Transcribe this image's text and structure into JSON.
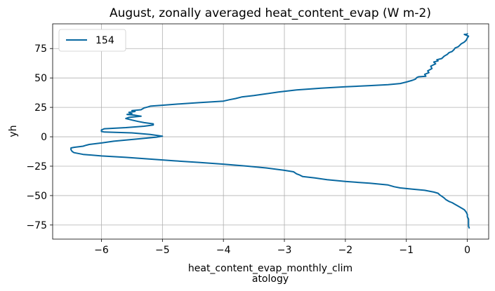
{
  "chart_data": {
    "type": "line",
    "title": "August, zonally averaged heat_content_evap (W m-2)",
    "xlabel_line1": "heat_content_evap_monthly_clim",
    "xlabel_line2": "atology",
    "ylabel": "yh",
    "xlim": [
      -6.8,
      0.35
    ],
    "ylim": [
      -87,
      96
    ],
    "xticks": [
      -6,
      -5,
      -4,
      -3,
      -2,
      -1,
      0
    ],
    "xtick_labels": [
      "−6",
      "−5",
      "−4",
      "−3",
      "−2",
      "−1",
      "0"
    ],
    "yticks": [
      -75,
      -50,
      -25,
      0,
      25,
      50,
      75
    ],
    "ytick_labels": [
      "−75",
      "−50",
      "−25",
      "0",
      "25",
      "50",
      "75"
    ],
    "grid": true,
    "legend_position": "top-left",
    "series": [
      {
        "name": "154",
        "color": "#0868a0",
        "points": [
          [
            0.0,
            88.0
          ],
          [
            0.0,
            87.5
          ],
          [
            -0.05,
            87.0
          ],
          [
            0.02,
            85.5
          ],
          [
            0.0,
            84.0
          ],
          [
            -0.02,
            82.0
          ],
          [
            -0.05,
            80.5
          ],
          [
            -0.1,
            79.0
          ],
          [
            -0.12,
            78.0
          ],
          [
            -0.15,
            76.5
          ],
          [
            -0.2,
            75.5
          ],
          [
            -0.22,
            74.0
          ],
          [
            -0.25,
            72.5
          ],
          [
            -0.3,
            71.5
          ],
          [
            -0.33,
            70.0
          ],
          [
            -0.38,
            68.5
          ],
          [
            -0.42,
            66.5
          ],
          [
            -0.5,
            65.5
          ],
          [
            -0.48,
            64.5
          ],
          [
            -0.55,
            63.5
          ],
          [
            -0.52,
            62.0
          ],
          [
            -0.6,
            60.0
          ],
          [
            -0.58,
            58.0
          ],
          [
            -0.65,
            56.0
          ],
          [
            -0.63,
            54.5
          ],
          [
            -0.7,
            53.0
          ],
          [
            -0.68,
            51.5
          ],
          [
            -0.8,
            51.0
          ],
          [
            -0.83,
            50.3
          ],
          [
            -0.85,
            49.0
          ],
          [
            -0.9,
            48.0
          ],
          [
            -1.0,
            46.5
          ],
          [
            -1.1,
            45.3
          ],
          [
            -1.3,
            44.3
          ],
          [
            -1.6,
            43.5
          ],
          [
            -2.0,
            42.5
          ],
          [
            -2.4,
            41.3
          ],
          [
            -2.8,
            39.8
          ],
          [
            -3.1,
            38.0
          ],
          [
            -3.3,
            36.5
          ],
          [
            -3.5,
            35.0
          ],
          [
            -3.7,
            33.8
          ],
          [
            -3.8,
            32.5
          ],
          [
            -3.9,
            31.5
          ],
          [
            -4.0,
            30.3
          ],
          [
            -4.4,
            29.0
          ],
          [
            -4.7,
            28.0
          ],
          [
            -4.95,
            27.0
          ],
          [
            -5.2,
            26.0
          ],
          [
            -5.25,
            25.2
          ],
          [
            -5.3,
            24.5
          ],
          [
            -5.35,
            23.0
          ],
          [
            -5.5,
            22.2
          ],
          [
            -5.45,
            21.5
          ],
          [
            -5.55,
            20.7
          ],
          [
            -5.5,
            19.7
          ],
          [
            -5.58,
            19.0
          ],
          [
            -5.45,
            18.3
          ],
          [
            -5.35,
            17.5
          ],
          [
            -5.55,
            16.5
          ],
          [
            -5.6,
            15.5
          ],
          [
            -5.5,
            14.2
          ],
          [
            -5.4,
            13.0
          ],
          [
            -5.3,
            12.0
          ],
          [
            -5.15,
            11.0
          ],
          [
            -5.15,
            10.0
          ],
          [
            -5.3,
            9.0
          ],
          [
            -5.6,
            7.8
          ],
          [
            -5.95,
            6.8
          ],
          [
            -6.0,
            5.8
          ],
          [
            -6.0,
            4.5
          ],
          [
            -5.95,
            4.0
          ],
          [
            -5.5,
            3.3
          ],
          [
            -5.2,
            2.0
          ],
          [
            -5.0,
            0.5
          ],
          [
            -5.1,
            -0.3
          ],
          [
            -5.4,
            -1.8
          ],
          [
            -5.8,
            -3.8
          ],
          [
            -6.0,
            -5.3
          ],
          [
            -6.2,
            -6.5
          ],
          [
            -6.25,
            -7.2
          ],
          [
            -6.3,
            -8.0
          ],
          [
            -6.45,
            -9.0
          ],
          [
            -6.5,
            -9.5
          ],
          [
            -6.5,
            -11.0
          ],
          [
            -6.48,
            -12.5
          ],
          [
            -6.45,
            -13.5
          ],
          [
            -6.3,
            -15.0
          ],
          [
            -6.0,
            -16.3
          ],
          [
            -5.6,
            -17.5
          ],
          [
            -5.2,
            -19.0
          ],
          [
            -4.8,
            -20.5
          ],
          [
            -4.4,
            -21.8
          ],
          [
            -4.0,
            -23.3
          ],
          [
            -3.6,
            -25.0
          ],
          [
            -3.3,
            -26.5
          ],
          [
            -3.0,
            -28.5
          ],
          [
            -2.85,
            -29.8
          ],
          [
            -2.8,
            -31.5
          ],
          [
            -2.75,
            -32.5
          ],
          [
            -2.7,
            -33.8
          ],
          [
            -2.5,
            -35.0
          ],
          [
            -2.3,
            -36.5
          ],
          [
            -2.0,
            -38.0
          ],
          [
            -1.6,
            -39.5
          ],
          [
            -1.3,
            -41.0
          ],
          [
            -1.2,
            -42.5
          ],
          [
            -1.1,
            -43.5
          ],
          [
            -0.9,
            -44.5
          ],
          [
            -0.7,
            -45.5
          ],
          [
            -0.55,
            -47.0
          ],
          [
            -0.48,
            -48.0
          ],
          [
            -0.45,
            -49.5
          ],
          [
            -0.42,
            -50.5
          ],
          [
            -0.38,
            -52.0
          ],
          [
            -0.35,
            -53.5
          ],
          [
            -0.3,
            -55.0
          ],
          [
            -0.25,
            -56.0
          ],
          [
            -0.2,
            -57.5
          ],
          [
            -0.15,
            -59.0
          ],
          [
            -0.1,
            -60.5
          ],
          [
            -0.05,
            -62.0
          ],
          [
            -0.02,
            -64.0
          ],
          [
            0.0,
            -66.0
          ],
          [
            0.0,
            -68.0
          ],
          [
            0.02,
            -70.0
          ],
          [
            0.02,
            -73.0
          ],
          [
            0.02,
            -76.0
          ],
          [
            0.03,
            -77.5
          ],
          [
            0.03,
            -78.0
          ]
        ]
      }
    ]
  }
}
